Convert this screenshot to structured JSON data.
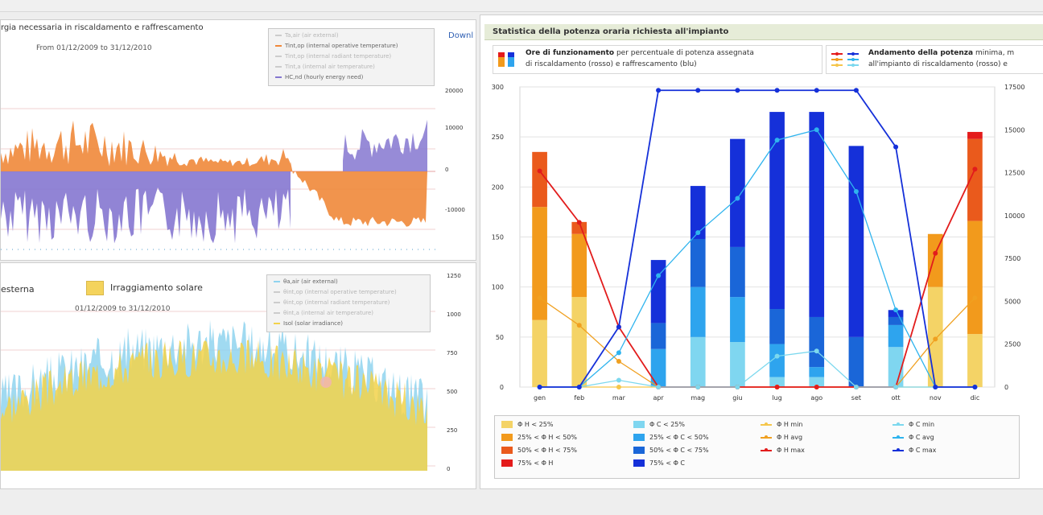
{
  "left_top": {
    "title": "rgia necessaria in riscaldamento e raffrescamento",
    "subtitle": "From 01/12/2009 to 31/12/2010",
    "link": "Downl",
    "legend": [
      {
        "label": "Ta,air (air external)",
        "dim": true
      },
      {
        "label": "Tint,op (internal operative temperature)",
        "dim": false
      },
      {
        "label": "Tint,op (internal radiant temperature)",
        "dim": true
      },
      {
        "label": "Tint,a (internal air temperature)",
        "dim": true
      },
      {
        "label": "HC,nd (hourly energy need)",
        "dim": false
      }
    ],
    "right_ticks": [
      "20000",
      "10000",
      "0",
      "-10000"
    ]
  },
  "left_bottom": {
    "label_a": "esterna",
    "label_b": "Irraggiamento solare",
    "subtitle": "01/12/2009 to 31/12/2010",
    "legend": [
      {
        "label": "θa,air (air external)",
        "dim": false
      },
      {
        "label": "θint,op (internal operative temperature)",
        "dim": true
      },
      {
        "label": "θint,op (internal radiant temperature)",
        "dim": true
      },
      {
        "label": "θint,a (internal air temperature)",
        "dim": true
      },
      {
        "label": "Isol (solar irradiance)",
        "dim": false
      }
    ],
    "right_ticks": [
      "1250",
      "1000",
      "750",
      "500",
      "250",
      "0"
    ]
  },
  "right": {
    "header": "Statistica della potenza oraria richiesta all'impianto",
    "info1_bold": "Ore di funzionamento",
    "info1_text": " per percentuale di potenza assegnata",
    "info1_line2": "di riscaldamento (rosso) e raffrescamento (blu)",
    "info2_bold": "Andamento della potenza",
    "info2_text": " minima, m",
    "info2_line2": "all'impianto di riscaldamento (rosso) e",
    "legend": [
      {
        "label": "Φ H < 25%",
        "color": "#f4d366",
        "kind": "box"
      },
      {
        "label": "25% < Φ H < 50%",
        "color": "#f29a1c",
        "kind": "box"
      },
      {
        "label": "50% < Φ H < 75%",
        "color": "#ea5a1c",
        "kind": "box"
      },
      {
        "label": "75% < Φ H",
        "color": "#e41b1b",
        "kind": "box"
      },
      {
        "label": "Φ C < 25%",
        "color": "#7fd6f0",
        "kind": "box"
      },
      {
        "label": "25% < Φ C < 50%",
        "color": "#2ea4ee",
        "kind": "box"
      },
      {
        "label": "50% < Φ C < 75%",
        "color": "#1a66d8",
        "kind": "box"
      },
      {
        "label": "75% < Φ C",
        "color": "#1530d9",
        "kind": "box"
      },
      {
        "label": "Φ H min",
        "color": "#f5c64b",
        "kind": "line"
      },
      {
        "label": "Φ H avg",
        "color": "#f0a020",
        "kind": "line"
      },
      {
        "label": "Φ H max",
        "color": "#e21c1c",
        "kind": "line"
      },
      {
        "label": "Φ C min",
        "color": "#7cd8ee",
        "kind": "line"
      },
      {
        "label": "Φ C avg",
        "color": "#2fb4ee",
        "kind": "line"
      },
      {
        "label": "Φ C max",
        "color": "#1530d9",
        "kind": "line"
      }
    ]
  },
  "chart_data": [
    {
      "type": "bar",
      "title": "Statistica della potenza oraria richiesta all'impianto",
      "categories": [
        "gen",
        "feb",
        "mar",
        "apr",
        "mag",
        "giu",
        "lug",
        "ago",
        "set",
        "ott",
        "nov",
        "dic"
      ],
      "ylim": [
        0,
        300
      ],
      "y2lim": [
        0,
        17500
      ],
      "y_ticks": [
        0,
        50,
        100,
        150,
        200,
        250,
        300
      ],
      "y2_ticks": [
        0,
        2500,
        5000,
        7500,
        10000,
        12500,
        15000,
        17500
      ],
      "stacked_series": [
        {
          "name": "Φ H < 25%",
          "values": [
            67,
            90,
            0,
            0,
            0,
            0,
            0,
            0,
            0,
            0,
            100,
            53
          ]
        },
        {
          "name": "25% < Φ H < 50%",
          "values": [
            113,
            63,
            0,
            0,
            0,
            0,
            0,
            0,
            0,
            0,
            53,
            113
          ]
        },
        {
          "name": "50% < Φ H < 75%",
          "values": [
            55,
            12,
            0,
            0,
            0,
            0,
            0,
            0,
            0,
            0,
            0,
            82
          ]
        },
        {
          "name": "75% < Φ H",
          "values": [
            0,
            0,
            0,
            0,
            0,
            0,
            0,
            0,
            0,
            0,
            0,
            7
          ]
        },
        {
          "name": "Φ C < 25%",
          "values": [
            0,
            0,
            0,
            0,
            50,
            45,
            10,
            10,
            0,
            40,
            0,
            0
          ]
        },
        {
          "name": "25% < Φ C < 50%",
          "values": [
            0,
            0,
            0,
            38,
            50,
            45,
            33,
            10,
            0,
            22,
            0,
            0
          ]
        },
        {
          "name": "50% < Φ C < 75%",
          "values": [
            0,
            0,
            0,
            26,
            48,
            50,
            35,
            50,
            50,
            8,
            0,
            0
          ]
        },
        {
          "name": "75% < Φ C",
          "values": [
            0,
            0,
            0,
            63,
            53,
            108,
            197,
            205,
            191,
            7,
            0,
            0
          ]
        }
      ],
      "line_series": [
        {
          "name": "Φ H min",
          "values": [
            0,
            0,
            0,
            0,
            0,
            0,
            0,
            0,
            0,
            0,
            0,
            0
          ]
        },
        {
          "name": "Φ H avg",
          "values": [
            5200,
            3600,
            1500,
            0,
            0,
            0,
            0,
            0,
            0,
            0,
            2800,
            5200
          ]
        },
        {
          "name": "Φ H max",
          "values": [
            12600,
            9600,
            3500,
            0,
            0,
            0,
            0,
            0,
            0,
            0,
            7800,
            12700
          ]
        },
        {
          "name": "Φ C min",
          "values": [
            0,
            0,
            400,
            0,
            0,
            0,
            1800,
            2100,
            0,
            0,
            0,
            0
          ]
        },
        {
          "name": "Φ C avg",
          "values": [
            0,
            0,
            2000,
            6500,
            9000,
            11000,
            14400,
            15000,
            11400,
            4500,
            0,
            0
          ]
        },
        {
          "name": "Φ C max",
          "values": [
            0,
            0,
            3500,
            17300,
            17300,
            17300,
            17300,
            17300,
            17300,
            14000,
            0,
            0
          ]
        }
      ]
    },
    {
      "type": "area",
      "title": "rgia necessaria in riscaldamento e raffrescamento",
      "subtitle": "From 01/12/2009 to 31/12/2010",
      "y2_ticks": [
        20000,
        10000,
        0,
        -10000
      ],
      "series": [
        {
          "name": "Tint,op (internal operative temperature)"
        },
        {
          "name": "HC,nd (hourly energy need)"
        }
      ]
    },
    {
      "type": "area",
      "subtitle": "01/12/2009 to 31/12/2010",
      "y2_ticks": [
        1250,
        1000,
        750,
        500,
        250,
        0
      ],
      "series": [
        {
          "name": "θa,air (air external)"
        },
        {
          "name": "Isol (solar irradiance)"
        }
      ]
    }
  ],
  "colors": {
    "orange": "#f0883a",
    "purple": "#8577d0",
    "yellow": "#f2d24a",
    "sky": "#8fd3ef"
  }
}
